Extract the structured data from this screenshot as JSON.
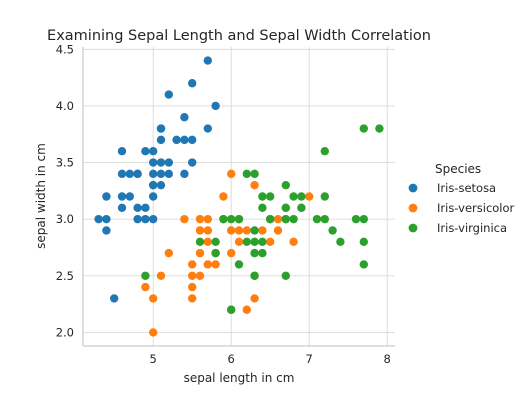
{
  "chart_data": {
    "type": "scatter",
    "title": "Examining Sepal Length and Sepal Width Correlation",
    "xlabel": "sepal length in cm",
    "ylabel": "sepal width in cm",
    "xlim": [
      4.1,
      8.1
    ],
    "ylim": [
      1.88,
      4.52
    ],
    "xticks": [
      5,
      6,
      7,
      8
    ],
    "yticks": [
      2.0,
      2.5,
      3.0,
      3.5,
      4.0,
      4.5
    ],
    "grid": true,
    "legend": {
      "title": "Species",
      "placement": "right"
    },
    "series": [
      {
        "name": "Iris-setosa",
        "color": "#1f77b4",
        "x": [
          4.3,
          4.4,
          4.4,
          4.4,
          4.5,
          4.6,
          4.6,
          4.6,
          4.6,
          4.7,
          4.7,
          4.8,
          4.8,
          4.8,
          4.8,
          4.9,
          4.9,
          4.9,
          5.0,
          5.0,
          5.0,
          5.0,
          5.0,
          5.0,
          5.0,
          5.1,
          5.1,
          5.1,
          5.1,
          5.1,
          5.1,
          5.2,
          5.2,
          5.2,
          5.3,
          5.4,
          5.4,
          5.4,
          5.5,
          5.5,
          5.5,
          5.7,
          5.7,
          5.8
        ],
        "y": [
          3.0,
          2.9,
          3.0,
          3.2,
          2.3,
          3.1,
          3.2,
          3.4,
          3.6,
          3.2,
          3.4,
          3.0,
          3.1,
          3.4,
          3.4,
          3.0,
          3.1,
          3.6,
          3.0,
          3.2,
          3.3,
          3.4,
          3.5,
          3.6,
          3.3,
          3.3,
          3.5,
          3.7,
          3.8,
          3.4,
          3.8,
          3.4,
          3.5,
          4.1,
          3.7,
          3.4,
          3.7,
          3.9,
          3.5,
          4.2,
          3.7,
          3.8,
          4.4,
          4.0
        ]
      },
      {
        "name": "Iris-versicolor",
        "color": "#ff7f0e",
        "x": [
          4.9,
          5.0,
          5.0,
          5.1,
          5.2,
          5.4,
          5.5,
          5.5,
          5.5,
          5.5,
          5.6,
          5.6,
          5.6,
          5.6,
          5.7,
          5.7,
          5.7,
          5.7,
          5.8,
          5.8,
          5.9,
          5.9,
          6.0,
          6.0,
          6.0,
          6.0,
          6.1,
          6.1,
          6.1,
          6.2,
          6.2,
          6.3,
          6.3,
          6.3,
          6.4,
          6.5,
          6.6,
          6.6,
          6.7,
          6.7,
          6.8,
          6.9,
          7.0
        ],
        "y": [
          2.4,
          2.0,
          2.3,
          2.5,
          2.7,
          3.0,
          2.3,
          2.4,
          2.5,
          2.6,
          2.5,
          2.7,
          2.9,
          3.0,
          2.6,
          2.8,
          2.9,
          3.0,
          2.6,
          2.7,
          3.0,
          3.2,
          2.2,
          2.7,
          2.9,
          3.4,
          2.8,
          2.9,
          3.0,
          2.2,
          2.9,
          2.3,
          2.5,
          3.3,
          2.9,
          2.8,
          2.9,
          3.0,
          3.1,
          3.0,
          2.8,
          3.1,
          3.2
        ]
      },
      {
        "name": "Iris-virginica",
        "color": "#2ca02c",
        "x": [
          4.9,
          5.6,
          5.8,
          5.8,
          5.9,
          6.0,
          6.0,
          6.1,
          6.1,
          6.2,
          6.2,
          6.3,
          6.3,
          6.3,
          6.3,
          6.3,
          6.4,
          6.4,
          6.4,
          6.4,
          6.5,
          6.5,
          6.5,
          6.7,
          6.7,
          6.7,
          6.7,
          6.8,
          6.8,
          6.9,
          6.9,
          7.1,
          7.2,
          7.2,
          7.2,
          7.3,
          7.4,
          7.6,
          7.7,
          7.7,
          7.7,
          7.7,
          7.9
        ],
        "y": [
          2.5,
          2.8,
          2.7,
          2.8,
          3.0,
          2.2,
          3.0,
          2.6,
          3.0,
          2.8,
          3.4,
          2.5,
          2.7,
          2.8,
          2.9,
          3.4,
          2.7,
          2.8,
          3.1,
          3.2,
          3.0,
          3.0,
          3.2,
          2.5,
          3.0,
          3.1,
          3.3,
          3.0,
          3.2,
          3.1,
          3.2,
          3.0,
          3.0,
          3.2,
          3.6,
          2.9,
          2.8,
          3.0,
          2.6,
          2.8,
          3.0,
          3.8,
          3.8
        ]
      }
    ]
  }
}
